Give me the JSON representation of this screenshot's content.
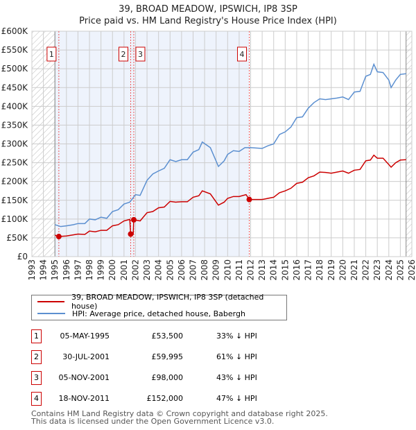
{
  "title": "39, BROAD MEADOW, IPSWICH, IP8 3SP",
  "subtitle": "Price paid vs. HM Land Registry's House Price Index (HPI)",
  "legend": {
    "red": "39, BROAD MEADOW, IPSWICH, IP8 3SP (detached house)",
    "blue": "HPI: Average price, detached house, Babergh"
  },
  "sales": [
    {
      "n": "1",
      "date": "05-MAY-1995",
      "price": "£53,500",
      "hpi": "33% ↓ HPI"
    },
    {
      "n": "2",
      "date": "30-JUL-2001",
      "price": "£59,995",
      "hpi": "61% ↓ HPI"
    },
    {
      "n": "3",
      "date": "05-NOV-2001",
      "price": "£98,000",
      "hpi": "43% ↓ HPI"
    },
    {
      "n": "4",
      "date": "18-NOV-2011",
      "price": "£152,000",
      "hpi": "47% ↓ HPI"
    }
  ],
  "footer": [
    "Contains HM Land Registry data © Crown copyright and database right 2025.",
    "This data is licensed under the Open Government Licence v3.0."
  ],
  "chart_data": {
    "type": "line",
    "xlim": [
      1993,
      2026
    ],
    "ylim": [
      0,
      600000
    ],
    "yticks": [
      {
        "v": 0,
        "l": "£0"
      },
      {
        "v": 50000,
        "l": "£50K"
      },
      {
        "v": 100000,
        "l": "£100K"
      },
      {
        "v": 150000,
        "l": "£150K"
      },
      {
        "v": 200000,
        "l": "£200K"
      },
      {
        "v": 250000,
        "l": "£250K"
      },
      {
        "v": 300000,
        "l": "£300K"
      },
      {
        "v": 350000,
        "l": "£350K"
      },
      {
        "v": 400000,
        "l": "£400K"
      },
      {
        "v": 450000,
        "l": "£450K"
      },
      {
        "v": 500000,
        "l": "£500K"
      },
      {
        "v": 550000,
        "l": "£550K"
      },
      {
        "v": 600000,
        "l": "£600K"
      }
    ],
    "xticks": [
      "1993",
      "1994",
      "1995",
      "1996",
      "1997",
      "1998",
      "1999",
      "2000",
      "2001",
      "2002",
      "2003",
      "2004",
      "2005",
      "2006",
      "2007",
      "2008",
      "2009",
      "2010",
      "2011",
      "2012",
      "2013",
      "2014",
      "2015",
      "2016",
      "2017",
      "2018",
      "2019",
      "2020",
      "2021",
      "2022",
      "2023",
      "2024",
      "2025",
      "2026"
    ],
    "series": [
      {
        "name": "HPI",
        "color": "#5b8fd0",
        "points": [
          [
            1995,
            85000
          ],
          [
            1995.5,
            80000
          ],
          [
            1996,
            82000
          ],
          [
            1996.6,
            85000
          ],
          [
            1997,
            88000
          ],
          [
            1997.6,
            88000
          ],
          [
            1998,
            100000
          ],
          [
            1998.5,
            98000
          ],
          [
            1999,
            105000
          ],
          [
            1999.5,
            102000
          ],
          [
            2000,
            120000
          ],
          [
            2000.5,
            125000
          ],
          [
            2001,
            140000
          ],
          [
            2001.5,
            145000
          ],
          [
            2002,
            165000
          ],
          [
            2002.4,
            163000
          ],
          [
            2003,
            203000
          ],
          [
            2003.5,
            220000
          ],
          [
            2004,
            228000
          ],
          [
            2004.5,
            235000
          ],
          [
            2005,
            258000
          ],
          [
            2005.5,
            253000
          ],
          [
            2006,
            258000
          ],
          [
            2006.5,
            258000
          ],
          [
            2007,
            278000
          ],
          [
            2007.5,
            285000
          ],
          [
            2007.8,
            305000
          ],
          [
            2008.5,
            290000
          ],
          [
            2009.2,
            240000
          ],
          [
            2009.7,
            255000
          ],
          [
            2010,
            272000
          ],
          [
            2010.5,
            282000
          ],
          [
            2011,
            280000
          ],
          [
            2011.5,
            290000
          ],
          [
            2012,
            290000
          ],
          [
            2013,
            288000
          ],
          [
            2013.5,
            295000
          ],
          [
            2014,
            300000
          ],
          [
            2014.5,
            325000
          ],
          [
            2015,
            332000
          ],
          [
            2015.5,
            345000
          ],
          [
            2016,
            370000
          ],
          [
            2016.5,
            372000
          ],
          [
            2017,
            395000
          ],
          [
            2017.5,
            410000
          ],
          [
            2018,
            420000
          ],
          [
            2018.5,
            418000
          ],
          [
            2019,
            420000
          ],
          [
            2019.5,
            422000
          ],
          [
            2020,
            425000
          ],
          [
            2020.5,
            418000
          ],
          [
            2021,
            438000
          ],
          [
            2021.5,
            440000
          ],
          [
            2022,
            480000
          ],
          [
            2022.4,
            485000
          ],
          [
            2022.7,
            512000
          ],
          [
            2023,
            492000
          ],
          [
            2023.5,
            490000
          ],
          [
            2024,
            470000
          ],
          [
            2024.2,
            450000
          ],
          [
            2024.6,
            470000
          ],
          [
            2025,
            485000
          ],
          [
            2025.5,
            487000
          ]
        ]
      },
      {
        "name": "Price paid",
        "color": "#cc0000",
        "points": [
          [
            1995,
            57000
          ],
          [
            1995.34,
            53500
          ],
          [
            1996,
            55000
          ],
          [
            1996.6,
            58000
          ],
          [
            1997,
            60000
          ],
          [
            1997.6,
            59000
          ],
          [
            1998,
            68000
          ],
          [
            1998.5,
            66000
          ],
          [
            1999,
            70000
          ],
          [
            1999.5,
            70000
          ],
          [
            2000,
            82000
          ],
          [
            2000.5,
            85000
          ],
          [
            2001,
            95000
          ],
          [
            2001.5,
            99000
          ],
          [
            2001.58,
            59995
          ],
          [
            2001.8,
            60000
          ],
          [
            2001.85,
            98000
          ],
          [
            2002.4,
            95000
          ],
          [
            2003,
            117000
          ],
          [
            2003.5,
            120000
          ],
          [
            2004,
            130000
          ],
          [
            2004.5,
            132000
          ],
          [
            2005,
            147000
          ],
          [
            2005.5,
            145000
          ],
          [
            2006,
            146000
          ],
          [
            2006.5,
            146000
          ],
          [
            2007,
            158000
          ],
          [
            2007.5,
            162000
          ],
          [
            2007.8,
            175000
          ],
          [
            2008.5,
            167000
          ],
          [
            2009.2,
            137000
          ],
          [
            2009.7,
            145000
          ],
          [
            2010,
            155000
          ],
          [
            2010.5,
            160000
          ],
          [
            2011,
            160000
          ],
          [
            2011.6,
            165000
          ],
          [
            2011.88,
            152000
          ],
          [
            2013,
            152000
          ],
          [
            2013.5,
            155000
          ],
          [
            2014,
            158000
          ],
          [
            2014.5,
            170000
          ],
          [
            2015,
            175000
          ],
          [
            2015.5,
            182000
          ],
          [
            2016,
            195000
          ],
          [
            2016.5,
            198000
          ],
          [
            2017,
            210000
          ],
          [
            2017.5,
            215000
          ],
          [
            2018,
            225000
          ],
          [
            2018.5,
            224000
          ],
          [
            2019,
            222000
          ],
          [
            2019.5,
            225000
          ],
          [
            2020,
            228000
          ],
          [
            2020.5,
            222000
          ],
          [
            2021,
            230000
          ],
          [
            2021.5,
            232000
          ],
          [
            2022,
            255000
          ],
          [
            2022.4,
            257000
          ],
          [
            2022.7,
            270000
          ],
          [
            2023,
            262000
          ],
          [
            2023.5,
            262000
          ],
          [
            2024,
            245000
          ],
          [
            2024.2,
            238000
          ],
          [
            2024.6,
            250000
          ],
          [
            2025,
            257000
          ],
          [
            2025.5,
            258000
          ]
        ]
      }
    ],
    "markers": [
      {
        "label": "1",
        "x": 1995.34,
        "y": 53500
      },
      {
        "label": "2",
        "x": 2001.58,
        "y": 59995
      },
      {
        "label": "3",
        "x": 2001.85,
        "y": 98000
      },
      {
        "label": "4",
        "x": 2011.88,
        "y": 152000
      }
    ],
    "shaded": [
      1995.0,
      2011.88
    ],
    "hatched": [
      [
        1993,
        1995.0
      ],
      [
        2025.5,
        2026
      ]
    ]
  }
}
